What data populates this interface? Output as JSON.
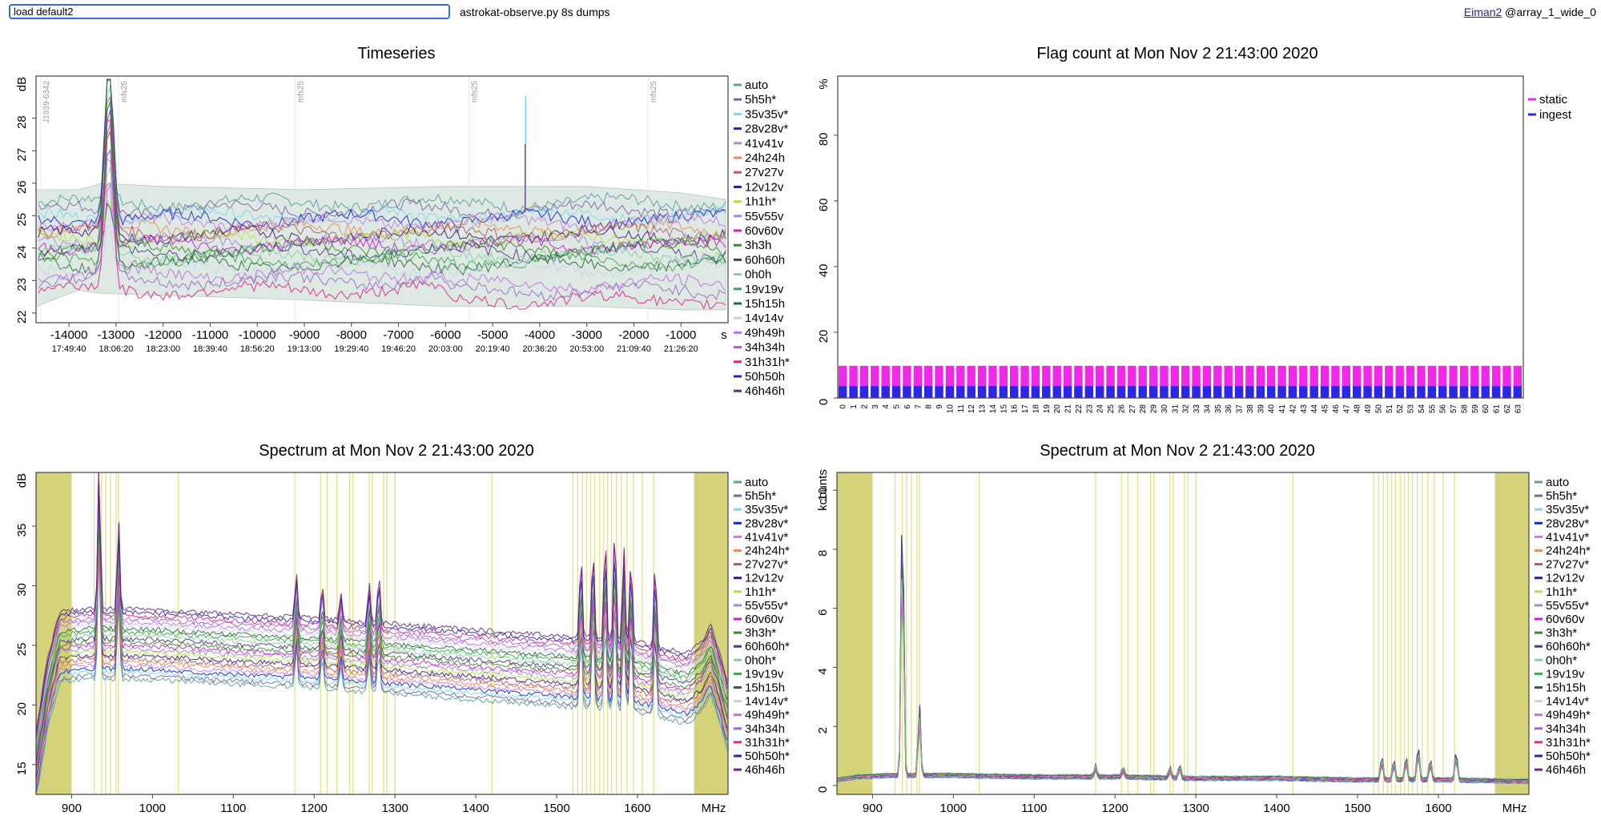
{
  "toolbar": {
    "command_value": "load default2",
    "status": "astrokat-observe.py 8s dumps"
  },
  "user": {
    "name": "Eiman2",
    "suffix": "@array_1_wide_0"
  },
  "chart_data": [
    {
      "type": "line",
      "title": "Timeseries",
      "ylabel": "dB",
      "xunit": "s",
      "ylim": [
        21.7,
        29.3
      ],
      "xlim": [
        -14700,
        0
      ],
      "yticks": [
        22,
        23,
        24,
        25,
        26,
        27,
        28
      ],
      "xticks": [
        -14000,
        -13000,
        -12000,
        -11000,
        -10000,
        -9000,
        -8000,
        -7000,
        -6000,
        -5000,
        -4000,
        -3000,
        -2000,
        -1000
      ],
      "time_labels": [
        "17:49:40",
        "18:06:20",
        "18:23:00",
        "18:39:40",
        "18:56:20",
        "19:13:00",
        "19:29:40",
        "19:46:20",
        "20:03:00",
        "20:19:40",
        "20:36:20",
        "20:53:00",
        "21:09:40",
        "21:26:20"
      ],
      "annotations": [
        {
          "x": -14600,
          "text": "J1939-6342"
        },
        {
          "x": -12950,
          "text": "mfs25"
        },
        {
          "x": -9200,
          "text": "mfs25"
        },
        {
          "x": -5500,
          "text": "mfs25"
        },
        {
          "x": -1700,
          "text": "mfs25"
        }
      ],
      "envelope_upper": [
        [
          -14700,
          25.8
        ],
        [
          -13800,
          25.8
        ],
        [
          -13300,
          26.0
        ],
        [
          -12000,
          25.9
        ],
        [
          -9000,
          25.8
        ],
        [
          -6000,
          25.9
        ],
        [
          -3000,
          25.9
        ],
        [
          -1000,
          25.7
        ],
        [
          -50,
          25.5
        ]
      ],
      "envelope_lower": [
        [
          -14700,
          22.2
        ],
        [
          -13800,
          22.7
        ],
        [
          -13300,
          22.6
        ],
        [
          -11000,
          22.5
        ],
        [
          -9000,
          22.4
        ],
        [
          -6000,
          22.2
        ],
        [
          -3000,
          22.2
        ],
        [
          -1000,
          22.1
        ],
        [
          -50,
          22.1
        ]
      ],
      "series_levels": [
        25.4,
        25.2,
        25.0,
        24.9,
        24.8,
        24.6,
        24.5,
        24.4,
        24.3,
        24.2,
        24.1,
        24.0,
        23.9,
        23.8,
        23.6,
        23.5,
        23.4,
        23.2,
        23.0,
        22.7
      ]
    },
    {
      "type": "bar",
      "title": "Flag count at Mon Nov  2 21:43:00 2020",
      "ylabel": "%",
      "ylim": [
        0,
        98
      ],
      "yticks": [
        0,
        20,
        40,
        60,
        80
      ],
      "categories": [
        "0",
        "1",
        "2",
        "3",
        "4",
        "5",
        "6",
        "7",
        "8",
        "9",
        "10",
        "11",
        "12",
        "13",
        "14",
        "15",
        "16",
        "17",
        "18",
        "19",
        "20",
        "21",
        "22",
        "23",
        "24",
        "25",
        "26",
        "27",
        "28",
        "29",
        "30",
        "31",
        "32",
        "33",
        "34",
        "35",
        "36",
        "37",
        "38",
        "39",
        "40",
        "41",
        "42",
        "43",
        "44",
        "45",
        "46",
        "47",
        "48",
        "49",
        "50",
        "51",
        "52",
        "53",
        "54",
        "55",
        "56",
        "57",
        "58",
        "59",
        "60",
        "61",
        "62",
        "63"
      ],
      "series": [
        {
          "name": "static",
          "value": 9.8,
          "color": "#f028e8"
        },
        {
          "name": "ingest",
          "value": 3.6,
          "color": "#2a28e8"
        }
      ]
    },
    {
      "type": "line",
      "title": "Spectrum at Mon Nov  2 21:43:00 2020",
      "ylabel": "dB",
      "xunit": "MHz",
      "xlim": [
        856,
        1712
      ],
      "ylim": [
        12.5,
        39.5
      ],
      "yticks": [
        15,
        20,
        25,
        30,
        35
      ],
      "xticks": [
        900,
        1000,
        1100,
        1200,
        1300,
        1400,
        1500,
        1600
      ],
      "baseline": [
        [
          856,
          15
        ],
        [
          870,
          21
        ],
        [
          885,
          25
        ],
        [
          920,
          25.3
        ],
        [
          1000,
          25.2
        ],
        [
          1100,
          24.8
        ],
        [
          1200,
          24.5
        ],
        [
          1300,
          24.0
        ],
        [
          1400,
          23.5
        ],
        [
          1500,
          23.0
        ],
        [
          1600,
          22.5
        ],
        [
          1660,
          21.5
        ],
        [
          1680,
          22.5
        ],
        [
          1690,
          24
        ],
        [
          1700,
          22
        ],
        [
          1712,
          19
        ]
      ],
      "peaks": [
        [
          934,
          40
        ],
        [
          958,
          34
        ],
        [
          1178,
          29
        ],
        [
          1210,
          28
        ],
        [
          1233,
          27
        ],
        [
          1268,
          28
        ],
        [
          1280,
          29
        ],
        [
          1530,
          31
        ],
        [
          1545,
          32
        ],
        [
          1560,
          33
        ],
        [
          1572,
          34
        ],
        [
          1583,
          32
        ],
        [
          1592,
          31
        ],
        [
          1622,
          30.5
        ]
      ],
      "shaded": [
        [
          856,
          900
        ],
        [
          1670,
          1712
        ]
      ],
      "flag_lines": [
        928,
        937,
        942,
        948,
        955,
        958,
        1032,
        1176,
        1208,
        1216,
        1228,
        1244,
        1248,
        1268,
        1272,
        1286,
        1290,
        1300,
        1420,
        1520,
        1526,
        1532,
        1537,
        1542,
        1547,
        1553,
        1558,
        1563,
        1568,
        1574,
        1580,
        1587,
        1595,
        1606,
        1620
      ]
    },
    {
      "type": "line",
      "title": "Spectrum at Mon Nov  2 21:43:00 2020",
      "ylabel": "kcounts",
      "xunit": "MHz",
      "xlim": [
        856,
        1712
      ],
      "ylim": [
        -0.3,
        10.6
      ],
      "yticks": [
        0,
        2,
        4,
        6,
        8,
        10
      ],
      "xticks": [
        900,
        1000,
        1100,
        1200,
        1300,
        1400,
        1500,
        1600
      ],
      "baseline": [
        [
          856,
          0.2
        ],
        [
          880,
          0.3
        ],
        [
          920,
          0.35
        ],
        [
          1000,
          0.35
        ],
        [
          1100,
          0.3
        ],
        [
          1200,
          0.3
        ],
        [
          1300,
          0.25
        ],
        [
          1400,
          0.25
        ],
        [
          1500,
          0.2
        ],
        [
          1600,
          0.2
        ],
        [
          1712,
          0.15
        ]
      ],
      "peaks": [
        [
          937,
          10.3
        ],
        [
          958,
          2.8
        ],
        [
          1176,
          0.7
        ],
        [
          1210,
          0.6
        ],
        [
          1268,
          0.6
        ],
        [
          1280,
          0.7
        ],
        [
          1530,
          1.0
        ],
        [
          1545,
          0.9
        ],
        [
          1560,
          1.0
        ],
        [
          1575,
          1.4
        ],
        [
          1590,
          0.9
        ],
        [
          1622,
          1.2
        ]
      ],
      "shaded": [
        [
          856,
          900
        ],
        [
          1670,
          1712
        ]
      ],
      "flag_lines": [
        928,
        937,
        942,
        948,
        955,
        958,
        1032,
        1176,
        1208,
        1216,
        1228,
        1244,
        1248,
        1268,
        1272,
        1286,
        1290,
        1300,
        1420,
        1520,
        1526,
        1532,
        1537,
        1542,
        1547,
        1553,
        1558,
        1563,
        1568,
        1574,
        1580,
        1587,
        1595,
        1606,
        1620
      ]
    }
  ],
  "legends": {
    "timeseries": [
      {
        "label": "auto",
        "color": "#5c9ea0"
      },
      {
        "label": "5h5h*",
        "color": "#7a66a4"
      },
      {
        "label": "35v35v*",
        "color": "#78d8ec"
      },
      {
        "label": "28v28v*",
        "color": "#1528c8"
      },
      {
        "label": "41v41v",
        "color": "#c87ae8"
      },
      {
        "label": "24h24h",
        "color": "#e88a5c"
      },
      {
        "label": "27v27v",
        "color": "#a85c6c"
      },
      {
        "label": "12v12v",
        "color": "#3a1a7a"
      },
      {
        "label": "1h1h*",
        "color": "#b8e040"
      },
      {
        "label": "55v55v",
        "color": "#9a8ad8"
      },
      {
        "label": "60v60v",
        "color": "#c820c8"
      },
      {
        "label": "3h3h",
        "color": "#3a8a2a"
      },
      {
        "label": "60h60h",
        "color": "#4a3a7a"
      },
      {
        "label": "0h0h",
        "color": "#88d0a0"
      },
      {
        "label": "19v19v",
        "color": "#3aa848"
      },
      {
        "label": "15h15h",
        "color": "#2a6a3a"
      },
      {
        "label": "14v14v",
        "color": "#c8d0ec"
      },
      {
        "label": "49h49h",
        "color": "#c070e0"
      },
      {
        "label": "34h34h",
        "color": "#9a6ac8"
      },
      {
        "label": "31h31h*",
        "color": "#d82888"
      },
      {
        "label": "50h50h",
        "color": "#2828a8"
      },
      {
        "label": "46h46h",
        "color": "#6a2a7a"
      }
    ],
    "spectrum_db": [
      {
        "label": "auto",
        "color": "#5c9ea0"
      },
      {
        "label": "5h5h*",
        "color": "#7a66a4"
      },
      {
        "label": "35v35v*",
        "color": "#78d8ec"
      },
      {
        "label": "28v28v*",
        "color": "#1528c8"
      },
      {
        "label": "41v41v*",
        "color": "#c87ae8"
      },
      {
        "label": "24h24h*",
        "color": "#e88a5c"
      },
      {
        "label": "27v27v*",
        "color": "#a85c6c"
      },
      {
        "label": "12v12v",
        "color": "#3a1a7a"
      },
      {
        "label": "1h1h*",
        "color": "#b8e040"
      },
      {
        "label": "55v55v*",
        "color": "#9a8ad8"
      },
      {
        "label": "60v60v",
        "color": "#c820c8"
      },
      {
        "label": "3h3h*",
        "color": "#3a8a2a"
      },
      {
        "label": "60h60h*",
        "color": "#4a3a7a"
      },
      {
        "label": "0h0h*",
        "color": "#88d0a0"
      },
      {
        "label": "19v19v",
        "color": "#3aa848"
      },
      {
        "label": "15h15h",
        "color": "#2a6a3a"
      },
      {
        "label": "14v14v*",
        "color": "#c8d0ec"
      },
      {
        "label": "49h49h*",
        "color": "#c070e0"
      },
      {
        "label": "34h34h",
        "color": "#9a6ac8"
      },
      {
        "label": "31h31h*",
        "color": "#d82888"
      },
      {
        "label": "50h50h*",
        "color": "#2828a8"
      },
      {
        "label": "46h46h",
        "color": "#6a2a7a"
      }
    ],
    "spectrum_counts": [
      {
        "label": "auto",
        "color": "#5c9ea0"
      },
      {
        "label": "5h5h*",
        "color": "#7a66a4"
      },
      {
        "label": "35v35v*",
        "color": "#78d8ec"
      },
      {
        "label": "28v28v*",
        "color": "#1528c8"
      },
      {
        "label": "41v41v*",
        "color": "#c87ae8"
      },
      {
        "label": "24h24h*",
        "color": "#e88a5c"
      },
      {
        "label": "27v27v*",
        "color": "#a85c6c"
      },
      {
        "label": "12v12v",
        "color": "#3a1a7a"
      },
      {
        "label": "1h1h*",
        "color": "#b8e040"
      },
      {
        "label": "55v55v*",
        "color": "#9a8ad8"
      },
      {
        "label": "60v60v",
        "color": "#c820c8"
      },
      {
        "label": "3h3h*",
        "color": "#3a8a2a"
      },
      {
        "label": "60h60h*",
        "color": "#4a3a7a"
      },
      {
        "label": "0h0h*",
        "color": "#88d0a0"
      },
      {
        "label": "19v19v",
        "color": "#3aa848"
      },
      {
        "label": "15h15h",
        "color": "#2a6a3a"
      },
      {
        "label": "14v14v*",
        "color": "#c8d0ec"
      },
      {
        "label": "49h49h*",
        "color": "#c070e0"
      },
      {
        "label": "34h34h",
        "color": "#9a6ac8"
      },
      {
        "label": "31h31h*",
        "color": "#d82888"
      },
      {
        "label": "50h50h*",
        "color": "#2828a8"
      },
      {
        "label": "46h46h",
        "color": "#6a2a7a"
      }
    ]
  },
  "colors": {
    "shade": "#d4d37a",
    "flagline": "#e4e494",
    "envelope": "#dfe9e3",
    "frame": "#444444"
  }
}
